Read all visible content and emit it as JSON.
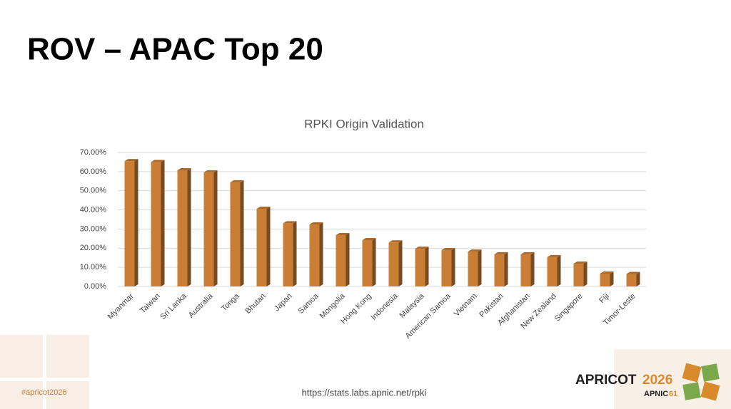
{
  "slide_title": "ROV – APAC Top 20",
  "chart_data": {
    "type": "bar",
    "title": "RPKI Origin Validation",
    "categories": [
      "Myanmar",
      "Taiwan",
      "Sri Lanka",
      "Australia",
      "Tonga",
      "Bhutan",
      "Japan",
      "Samoa",
      "Mongolia",
      "Hong Kong",
      "Indonesia",
      "Malaysia",
      "American Samoa",
      "Vietnam",
      "Pakistan",
      "Afghanistan",
      "New Zealand",
      "Singapore",
      "Fiji",
      "Timor-Leste"
    ],
    "values": [
      65.5,
      65,
      60.7,
      59.6,
      54.4,
      40.6,
      33,
      32.4,
      26.8,
      24.2,
      23,
      19.7,
      19,
      18.2,
      16.8,
      16.8,
      15.3,
      11.9,
      6.7,
      6.5
    ],
    "color": "#c97d35",
    "ylim": [
      0,
      70
    ],
    "yticks": [
      {
        "value": 0,
        "label": "0.00%"
      },
      {
        "value": 10,
        "label": "10.00%"
      },
      {
        "value": 20,
        "label": "20.00%"
      },
      {
        "value": 30,
        "label": "30.00%"
      },
      {
        "value": 40,
        "label": "40.00%"
      },
      {
        "value": 50,
        "label": "50.00%"
      },
      {
        "value": 60,
        "label": "60.00%"
      },
      {
        "value": 70,
        "label": "70.00%"
      }
    ],
    "grid": true
  },
  "source": "https://stats.labs.apnic.net/rpki",
  "hashtag": "#apricot2026",
  "logo": {
    "name": "APRICOT",
    "year": "2026",
    "org": "APNIC",
    "number": "61"
  }
}
